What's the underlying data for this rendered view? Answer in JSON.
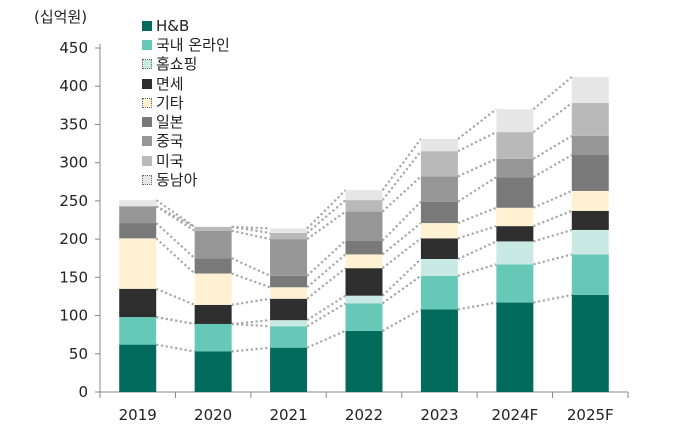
{
  "chart_data": {
    "type": "bar",
    "stacked": true,
    "unit_label": "(십억원)",
    "categories": [
      "2019",
      "2020",
      "2021",
      "2022",
      "2023",
      "2024F",
      "2025F"
    ],
    "ylim": [
      0,
      450
    ],
    "yticks": [
      0,
      50,
      100,
      150,
      200,
      250,
      300,
      350,
      400,
      450
    ],
    "grid": false,
    "connector_lines": "dotted",
    "legend_position": "top-left",
    "series": [
      {
        "name": "H&B",
        "color": "#036B5C",
        "values": [
          62,
          53,
          58,
          80,
          108,
          117,
          127
        ]
      },
      {
        "name": "국내 온라인",
        "color": "#66C9B8",
        "values": [
          36,
          36,
          28,
          36,
          44,
          50,
          53
        ]
      },
      {
        "name": "홈쇼핑",
        "color": "#C8E9E4",
        "values": [
          0,
          0,
          8,
          10,
          22,
          30,
          32
        ]
      },
      {
        "name": "면세",
        "color": "#2E2E2E",
        "values": [
          37,
          25,
          28,
          36,
          27,
          20,
          25
        ]
      },
      {
        "name": "기타",
        "color": "#FFF1D2",
        "values": [
          66,
          41,
          15,
          18,
          20,
          24,
          26
        ]
      },
      {
        "name": "일본",
        "color": "#797979",
        "values": [
          20,
          20,
          15,
          18,
          28,
          40,
          47
        ]
      },
      {
        "name": "중국",
        "color": "#969696",
        "values": [
          22,
          36,
          48,
          38,
          33,
          24,
          25
        ]
      },
      {
        "name": "미국",
        "color": "#B9B9B9",
        "values": [
          0,
          5,
          8,
          15,
          33,
          35,
          43
        ]
      },
      {
        "name": "동남아",
        "color": "#E6E6E6",
        "values": [
          8,
          0,
          6,
          13,
          16,
          30,
          34
        ]
      }
    ]
  }
}
